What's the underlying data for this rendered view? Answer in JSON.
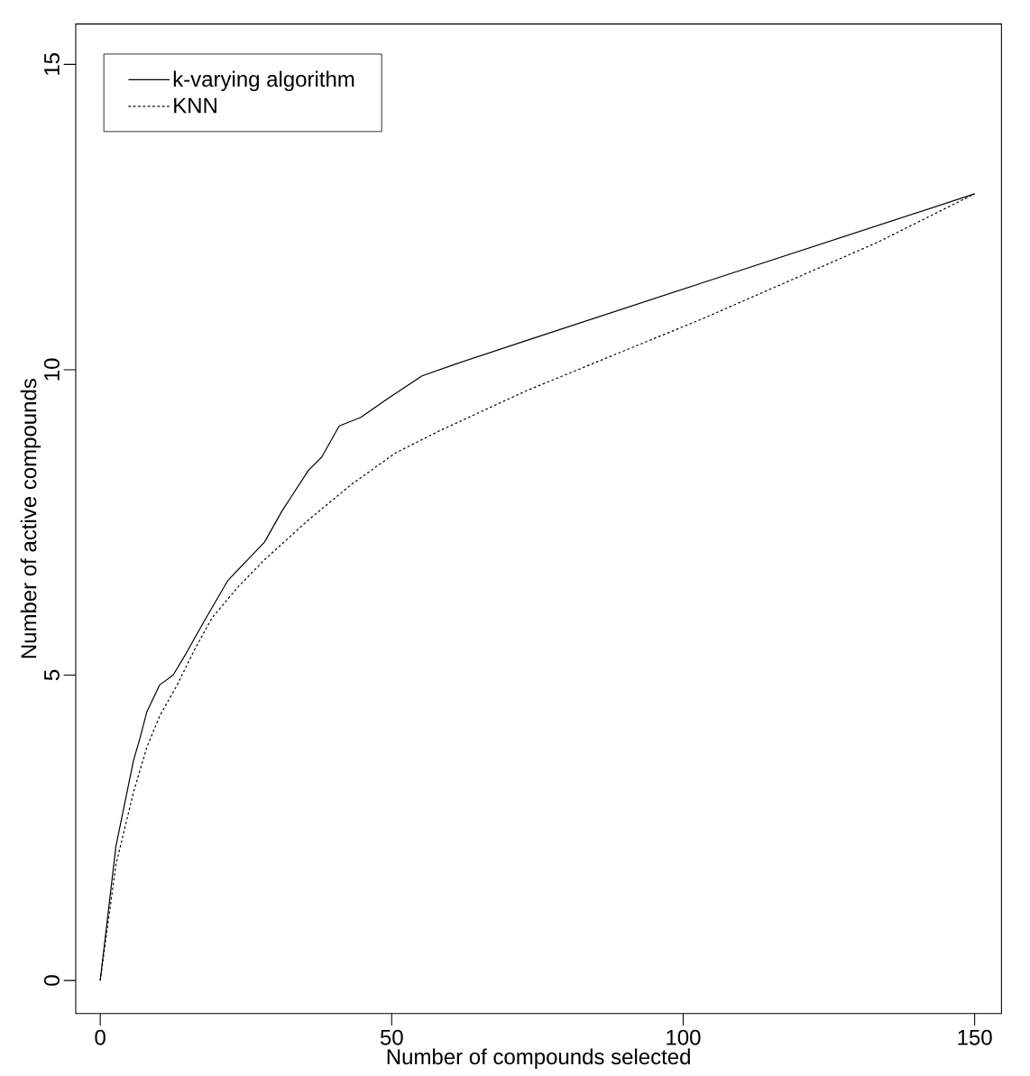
{
  "chart_data": {
    "type": "line",
    "xlabel": "Number of compounds selected",
    "ylabel": "Number of active compounds",
    "xlim": [
      -4.2,
      154.6
    ],
    "ylim": [
      -0.54,
      15.66
    ],
    "xticks": [
      0,
      50,
      100,
      150
    ],
    "yticks": [
      0,
      5,
      10,
      15
    ],
    "grid": false,
    "legend": "top left",
    "marker": "none",
    "series": [
      {
        "name": "k-varying algorithm",
        "color": "#000000",
        "line_style": "solid",
        "x": [
          0,
          2.7,
          5.7,
          6.8,
          8,
          10.2,
          12.5,
          14.7,
          17.7,
          21.9,
          26.7,
          28.2,
          31.2,
          32.7,
          35.7,
          38,
          41,
          44.7,
          49.2,
          55.2,
          61.2,
          73.2,
          103.2,
          150
        ],
        "values": [
          0,
          2.2,
          3.6,
          3.96,
          4.4,
          4.84,
          5.0,
          5.35,
          5.86,
          6.55,
          7.03,
          7.18,
          7.69,
          7.91,
          8.35,
          8.57,
          9.08,
          9.22,
          9.52,
          9.9,
          10.1,
          10.48,
          11.42,
          12.88
        ]
      },
      {
        "name": "KNN",
        "color": "#000000",
        "line_style": "dotted",
        "x": [
          0,
          2.7,
          5.7,
          8,
          10.2,
          13.2,
          16.2,
          19.2,
          23.7,
          28.2,
          35.7,
          43.2,
          50.7,
          58.2,
          73.2,
          103.2,
          133.2,
          150
        ],
        "values": [
          0,
          1.9,
          3.08,
          3.82,
          4.33,
          4.84,
          5.42,
          5.94,
          6.45,
          6.89,
          7.54,
          8.13,
          8.64,
          9.0,
          9.66,
          10.83,
          12.08,
          12.88
        ]
      }
    ]
  }
}
